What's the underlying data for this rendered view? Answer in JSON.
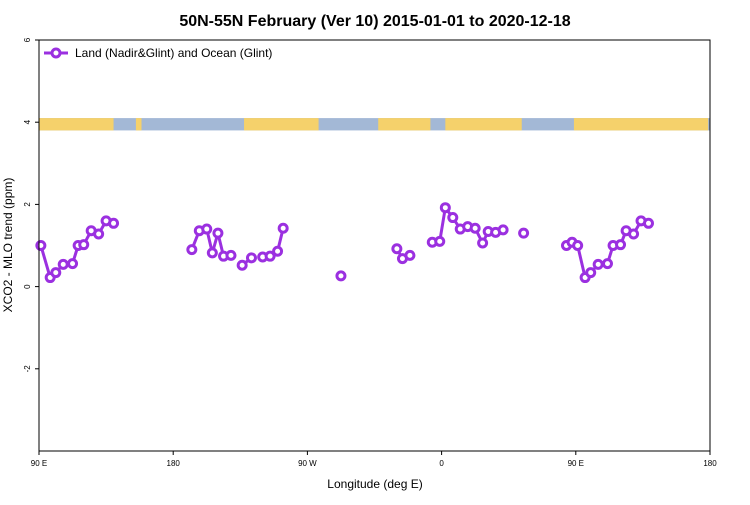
{
  "chart_data": {
    "type": "line",
    "title": "50N-55N February (Ver 10)   2015-01-01 to 2020-12-18",
    "xlabel": "Longitude (deg E)",
    "ylabel": "XCO2 - MLO trend (ppm)",
    "xlim": [
      90,
      450
    ],
    "ylim": [
      -4,
      6
    ],
    "xticks": [
      {
        "value": 90,
        "label": "90 E"
      },
      {
        "value": 162,
        "label": "180"
      },
      {
        "value": 234,
        "label": "90 W"
      },
      {
        "value": 306,
        "label": "0"
      },
      {
        "value": 378,
        "label": "90 E"
      },
      {
        "value": 450,
        "label": "180"
      }
    ],
    "yticks": [
      {
        "value": -2,
        "label": "-2"
      },
      {
        "value": 0,
        "label": "0"
      },
      {
        "value": 2,
        "label": "2"
      },
      {
        "value": 4,
        "label": "4"
      },
      {
        "value": 6,
        "label": "6"
      }
    ],
    "legend": {
      "position": "top-left"
    },
    "colors": {
      "series": "#9b30e0",
      "land": "#f5d16b",
      "ocean": "#a3b8d6"
    },
    "land_ocean_band": {
      "y_range": [
        3.8,
        4.1
      ],
      "land_segments": [
        [
          90,
          130
        ],
        [
          142,
          145
        ],
        [
          200,
          240
        ],
        [
          272,
          300
        ],
        [
          308,
          349
        ],
        [
          377,
          449
        ]
      ]
    },
    "series": [
      {
        "name": "Land (Nadir&Glint) and Ocean (Glint)",
        "segments": [
          [
            [
              91,
              1.0
            ],
            [
              96,
              0.22
            ],
            [
              99,
              0.34
            ],
            [
              103,
              0.54
            ],
            [
              108,
              0.56
            ],
            [
              111,
              1.0
            ],
            [
              114,
              1.02
            ],
            [
              118,
              1.36
            ],
            [
              122,
              1.28
            ],
            [
              126,
              1.6
            ],
            [
              130,
              1.54
            ]
          ],
          [
            [
              172,
              0.9
            ],
            [
              176,
              1.36
            ],
            [
              180,
              1.4
            ],
            [
              183,
              0.82
            ],
            [
              186,
              1.3
            ],
            [
              189,
              0.74
            ],
            [
              193,
              0.76
            ]
          ],
          [
            [
              199,
              0.52
            ],
            [
              204,
              0.7
            ]
          ],
          [
            [
              210,
              0.72
            ],
            [
              214,
              0.74
            ],
            [
              218,
              0.86
            ],
            [
              221,
              1.42
            ]
          ],
          [
            [
              252,
              0.26
            ]
          ],
          [
            [
              282,
              0.92
            ],
            [
              285,
              0.68
            ],
            [
              289,
              0.76
            ]
          ],
          [
            [
              301,
              1.08
            ],
            [
              305,
              1.1
            ],
            [
              308,
              1.92
            ],
            [
              312,
              1.68
            ],
            [
              316,
              1.4
            ],
            [
              320,
              1.46
            ],
            [
              324,
              1.42
            ],
            [
              328,
              1.06
            ],
            [
              331,
              1.34
            ],
            [
              335,
              1.32
            ],
            [
              339,
              1.38
            ]
          ],
          [
            [
              350,
              1.3
            ]
          ],
          [
            [
              373,
              1.0
            ],
            [
              376,
              1.08
            ],
            [
              379,
              1.0
            ],
            [
              383,
              0.22
            ],
            [
              386,
              0.34
            ],
            [
              390,
              0.54
            ],
            [
              395,
              0.56
            ],
            [
              398,
              1.0
            ],
            [
              402,
              1.02
            ],
            [
              405,
              1.36
            ],
            [
              409,
              1.28
            ],
            [
              413,
              1.6
            ],
            [
              417,
              1.54
            ]
          ]
        ]
      }
    ]
  }
}
